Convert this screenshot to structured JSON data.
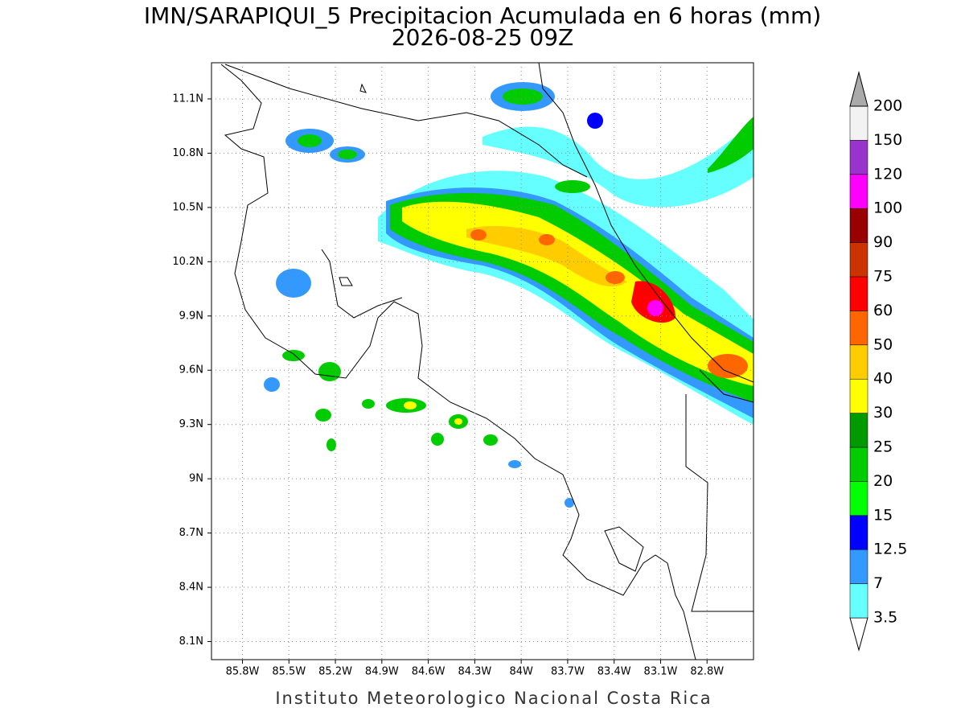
{
  "title": "IMN/SARAPIQUI_5 Precipitacion Acumulada en 6 horas (mm)",
  "subtitle": "2026-08-25 09Z",
  "footer": "Instituto Meteorologico Nacional Costa Rica",
  "map": {
    "xlim": [
      -86,
      -82.5
    ],
    "ylim": [
      8,
      11.3
    ],
    "grid": true,
    "xticks": [
      {
        "value": -85.8,
        "label": "85.8W"
      },
      {
        "value": -85.5,
        "label": "85.5W"
      },
      {
        "value": -85.2,
        "label": "85.2W"
      },
      {
        "value": -84.9,
        "label": "84.9W"
      },
      {
        "value": -84.6,
        "label": "84.6W"
      },
      {
        "value": -84.3,
        "label": "84.3W"
      },
      {
        "value": -84,
        "label": "84W"
      },
      {
        "value": -83.7,
        "label": "83.7W"
      },
      {
        "value": -83.4,
        "label": "83.4W"
      },
      {
        "value": -83.1,
        "label": "83.1W"
      },
      {
        "value": -82.8,
        "label": "82.8W"
      }
    ],
    "yticks": [
      {
        "value": 8.1,
        "label": "8.1N"
      },
      {
        "value": 8.4,
        "label": "8.4N"
      },
      {
        "value": 8.7,
        "label": "8.7N"
      },
      {
        "value": 9,
        "label": "9N"
      },
      {
        "value": 9.3,
        "label": "9.3N"
      },
      {
        "value": 9.6,
        "label": "9.6N"
      },
      {
        "value": 9.9,
        "label": "9.9N"
      },
      {
        "value": 10.2,
        "label": "10.2N"
      },
      {
        "value": 10.5,
        "label": "10.5N"
      },
      {
        "value": 10.8,
        "label": "10.8N"
      },
      {
        "value": 11.1,
        "label": "11.1N"
      }
    ]
  },
  "colorbar": {
    "levels": [
      3.5,
      7,
      12.5,
      15,
      20,
      25,
      30,
      40,
      50,
      60,
      75,
      90,
      100,
      120,
      150,
      200
    ],
    "colors": [
      "#ffffff",
      "#66ffff",
      "#3399ff",
      "#0000ff",
      "#00ff00",
      "#00cc00",
      "#009900",
      "#ffff00",
      "#ffcc00",
      "#ff6600",
      "#ff0000",
      "#cc3300",
      "#990000",
      "#ff00ff",
      "#9933cc",
      "#f2f2f2",
      "#aaaaaa"
    ]
  }
}
